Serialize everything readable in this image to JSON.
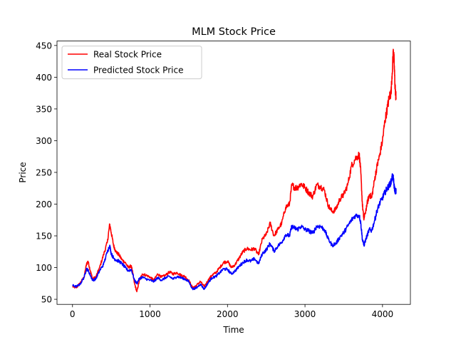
{
  "chart_data": {
    "type": "line",
    "title": "MLM Stock Price",
    "xlabel": "Time",
    "ylabel": "Price",
    "xlim": [
      -200,
      4360
    ],
    "ylim": [
      42,
      457
    ],
    "xticks": [
      0,
      1000,
      2000,
      3000,
      4000
    ],
    "yticks": [
      50,
      100,
      150,
      200,
      250,
      300,
      350,
      400,
      450
    ],
    "grid": false,
    "legend_position": "upper-left",
    "series": [
      {
        "name": "Real Stock Price",
        "color": "#ff0000",
        "points": [
          [
            0,
            70
          ],
          [
            50,
            68
          ],
          [
            100,
            76
          ],
          [
            150,
            85
          ],
          [
            180,
            105
          ],
          [
            200,
            110
          ],
          [
            230,
            95
          ],
          [
            260,
            82
          ],
          [
            300,
            85
          ],
          [
            350,
            100
          ],
          [
            400,
            120
          ],
          [
            450,
            140
          ],
          [
            480,
            168
          ],
          [
            500,
            155
          ],
          [
            530,
            135
          ],
          [
            560,
            125
          ],
          [
            600,
            120
          ],
          [
            640,
            112
          ],
          [
            680,
            108
          ],
          [
            720,
            100
          ],
          [
            760,
            103
          ],
          [
            800,
            75
          ],
          [
            830,
            62
          ],
          [
            860,
            78
          ],
          [
            900,
            90
          ],
          [
            950,
            88
          ],
          [
            1000,
            85
          ],
          [
            1050,
            80
          ],
          [
            1100,
            90
          ],
          [
            1150,
            85
          ],
          [
            1200,
            88
          ],
          [
            1250,
            93
          ],
          [
            1300,
            90
          ],
          [
            1350,
            92
          ],
          [
            1400,
            88
          ],
          [
            1450,
            86
          ],
          [
            1500,
            80
          ],
          [
            1550,
            68
          ],
          [
            1600,
            72
          ],
          [
            1650,
            78
          ],
          [
            1700,
            70
          ],
          [
            1750,
            80
          ],
          [
            1800,
            88
          ],
          [
            1850,
            92
          ],
          [
            1900,
            100
          ],
          [
            1950,
            108
          ],
          [
            2000,
            110
          ],
          [
            2050,
            100
          ],
          [
            2100,
            105
          ],
          [
            2150,
            115
          ],
          [
            2200,
            125
          ],
          [
            2250,
            130
          ],
          [
            2300,
            128
          ],
          [
            2350,
            130
          ],
          [
            2400,
            120
          ],
          [
            2450,
            145
          ],
          [
            2500,
            152
          ],
          [
            2550,
            170
          ],
          [
            2600,
            150
          ],
          [
            2650,
            160
          ],
          [
            2700,
            170
          ],
          [
            2750,
            195
          ],
          [
            2800,
            200
          ],
          [
            2830,
            230
          ],
          [
            2870,
            226
          ],
          [
            2900,
            226
          ],
          [
            2950,
            232
          ],
          [
            3000,
            226
          ],
          [
            3050,
            218
          ],
          [
            3100,
            212
          ],
          [
            3150,
            230
          ],
          [
            3200,
            228
          ],
          [
            3250,
            222
          ],
          [
            3300,
            198
          ],
          [
            3350,
            188
          ],
          [
            3400,
            192
          ],
          [
            3450,
            208
          ],
          [
            3500,
            215
          ],
          [
            3550,
            230
          ],
          [
            3600,
            260
          ],
          [
            3650,
            272
          ],
          [
            3700,
            278
          ],
          [
            3720,
            250
          ],
          [
            3740,
            200
          ],
          [
            3760,
            175
          ],
          [
            3800,
            200
          ],
          [
            3830,
            215
          ],
          [
            3860,
            210
          ],
          [
            3900,
            240
          ],
          [
            3930,
            260
          ],
          [
            3960,
            275
          ],
          [
            4000,
            300
          ],
          [
            4030,
            330
          ],
          [
            4060,
            350
          ],
          [
            4090,
            370
          ],
          [
            4110,
            375
          ],
          [
            4130,
            420
          ],
          [
            4140,
            442
          ],
          [
            4150,
            425
          ],
          [
            4160,
            390
          ],
          [
            4170,
            372
          ],
          [
            4175,
            368
          ]
        ]
      },
      {
        "name": "Predicted Stock Price",
        "color": "#0000ff",
        "points": [
          [
            0,
            72
          ],
          [
            50,
            70
          ],
          [
            100,
            74
          ],
          [
            150,
            85
          ],
          [
            180,
            98
          ],
          [
            200,
            96
          ],
          [
            230,
            88
          ],
          [
            260,
            80
          ],
          [
            300,
            82
          ],
          [
            350,
            95
          ],
          [
            400,
            105
          ],
          [
            450,
            125
          ],
          [
            480,
            135
          ],
          [
            500,
            122
          ],
          [
            530,
            115
          ],
          [
            560,
            112
          ],
          [
            600,
            110
          ],
          [
            640,
            106
          ],
          [
            680,
            100
          ],
          [
            720,
            95
          ],
          [
            760,
            97
          ],
          [
            800,
            80
          ],
          [
            830,
            75
          ],
          [
            860,
            82
          ],
          [
            900,
            85
          ],
          [
            950,
            82
          ],
          [
            1000,
            80
          ],
          [
            1050,
            78
          ],
          [
            1100,
            84
          ],
          [
            1150,
            80
          ],
          [
            1200,
            84
          ],
          [
            1250,
            86
          ],
          [
            1300,
            82
          ],
          [
            1350,
            86
          ],
          [
            1400,
            84
          ],
          [
            1450,
            82
          ],
          [
            1500,
            78
          ],
          [
            1550,
            66
          ],
          [
            1600,
            68
          ],
          [
            1650,
            74
          ],
          [
            1700,
            66
          ],
          [
            1750,
            76
          ],
          [
            1800,
            84
          ],
          [
            1850,
            86
          ],
          [
            1900,
            92
          ],
          [
            1950,
            98
          ],
          [
            2000,
            97
          ],
          [
            2050,
            90
          ],
          [
            2100,
            95
          ],
          [
            2150,
            102
          ],
          [
            2200,
            108
          ],
          [
            2250,
            112
          ],
          [
            2300,
            110
          ],
          [
            2350,
            114
          ],
          [
            2400,
            106
          ],
          [
            2450,
            122
          ],
          [
            2500,
            128
          ],
          [
            2550,
            138
          ],
          [
            2600,
            126
          ],
          [
            2650,
            134
          ],
          [
            2700,
            140
          ],
          [
            2750,
            152
          ],
          [
            2800,
            150
          ],
          [
            2830,
            165
          ],
          [
            2870,
            162
          ],
          [
            2900,
            160
          ],
          [
            2950,
            165
          ],
          [
            3000,
            160
          ],
          [
            3050,
            158
          ],
          [
            3100,
            154
          ],
          [
            3150,
            165
          ],
          [
            3200,
            165
          ],
          [
            3250,
            160
          ],
          [
            3300,
            145
          ],
          [
            3350,
            135
          ],
          [
            3400,
            138
          ],
          [
            3450,
            148
          ],
          [
            3500,
            155
          ],
          [
            3550,
            165
          ],
          [
            3600,
            175
          ],
          [
            3650,
            182
          ],
          [
            3700,
            182
          ],
          [
            3720,
            170
          ],
          [
            3740,
            145
          ],
          [
            3760,
            135
          ],
          [
            3800,
            150
          ],
          [
            3830,
            160
          ],
          [
            3860,
            158
          ],
          [
            3900,
            175
          ],
          [
            3930,
            190
          ],
          [
            3960,
            200
          ],
          [
            4000,
            210
          ],
          [
            4030,
            218
          ],
          [
            4060,
            225
          ],
          [
            4090,
            230
          ],
          [
            4110,
            235
          ],
          [
            4130,
            245
          ],
          [
            4140,
            240
          ],
          [
            4150,
            228
          ],
          [
            4160,
            222
          ],
          [
            4170,
            220
          ],
          [
            4175,
            220
          ]
        ]
      }
    ]
  }
}
